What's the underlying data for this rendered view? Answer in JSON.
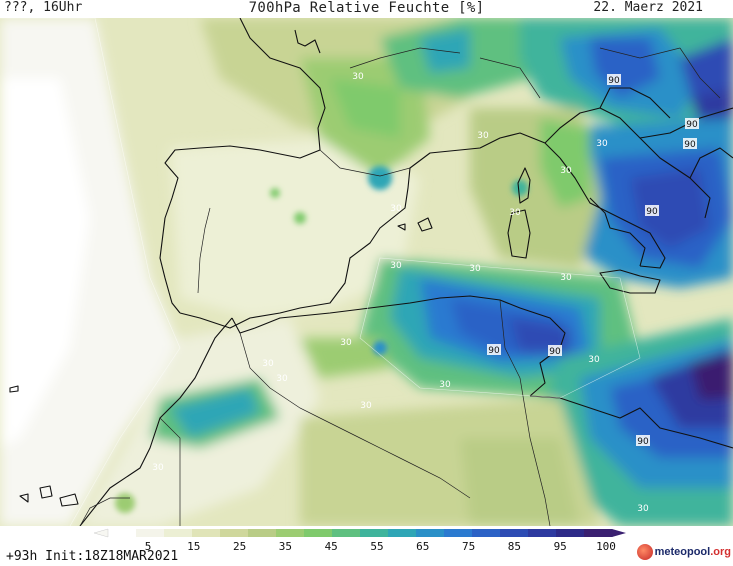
{
  "header": {
    "location": "???, 16Uhr",
    "title": "700hPa Relative Feuchte [%]",
    "date": "22. Maerz 2021"
  },
  "footer": {
    "init": "+93h Init:18Z18MAR2021",
    "brand_main": "meteopool",
    "brand_suffix": ".org"
  },
  "colorbar": {
    "ticks": [
      "5",
      "15",
      "25",
      "35",
      "45",
      "55",
      "65",
      "75",
      "85",
      "95",
      "100"
    ],
    "colors": [
      "#ffffff",
      "#f4f4ea",
      "#ecefd4",
      "#e0e4b8",
      "#cfd79c",
      "#b9cc86",
      "#9ccc72",
      "#7fca6c",
      "#5fc080",
      "#3fb49c",
      "#2fa6b6",
      "#2a90c8",
      "#2b7ad0",
      "#2c62c6",
      "#2d4cb4",
      "#2e3aa0",
      "#2e2a88",
      "#3a1f70"
    ]
  },
  "contour_labels": [
    {
      "text": "30"
    },
    {
      "text": "30"
    },
    {
      "text": "30"
    },
    {
      "text": "30"
    },
    {
      "text": "30"
    },
    {
      "text": "30"
    },
    {
      "text": "30"
    },
    {
      "text": "30"
    },
    {
      "text": "30"
    },
    {
      "text": "30"
    },
    {
      "text": "30"
    },
    {
      "text": "30"
    },
    {
      "text": "30"
    },
    {
      "text": "30"
    },
    {
      "text": "30"
    },
    {
      "text": "30"
    },
    {
      "text": "30"
    },
    {
      "text": "90"
    },
    {
      "text": "90"
    },
    {
      "text": "90"
    },
    {
      "text": "90"
    },
    {
      "text": "90"
    },
    {
      "text": "90"
    },
    {
      "text": "90"
    }
  ]
}
